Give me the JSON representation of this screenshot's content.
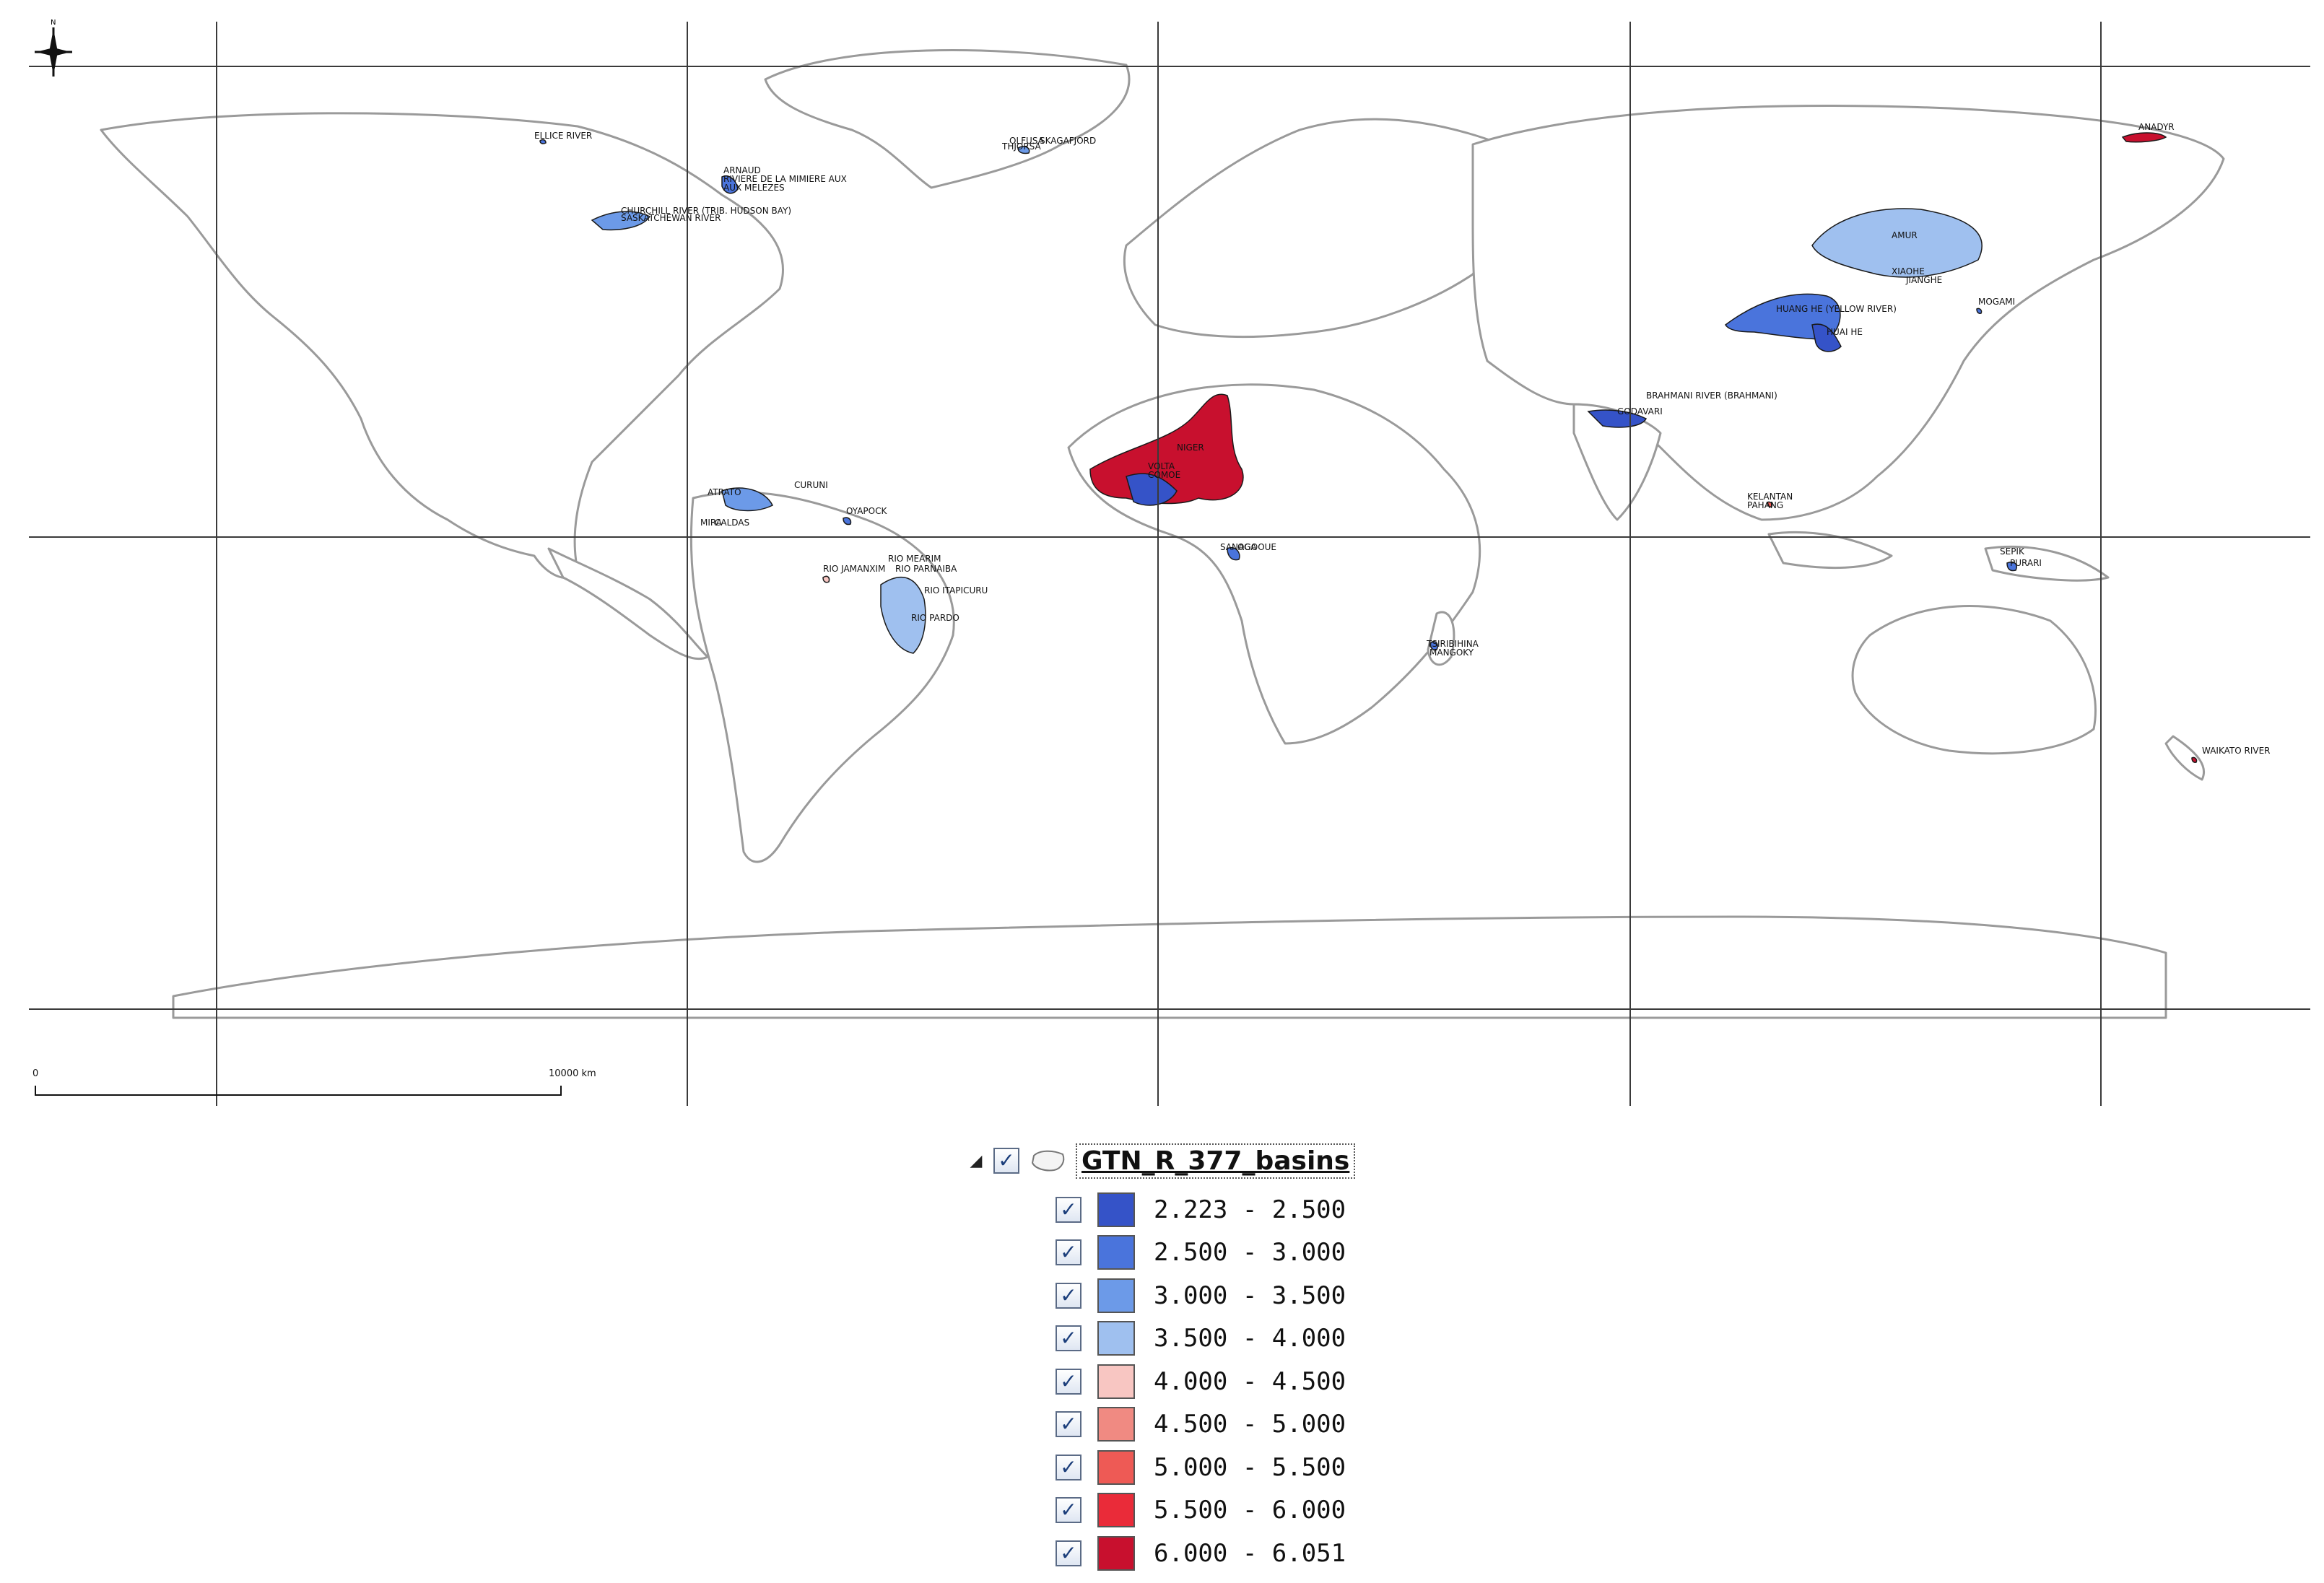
{
  "map": {
    "north_label": "N",
    "scale_zero": "0",
    "scale_distance": "10000 km",
    "basin_labels": [
      "ELLICE RIVER",
      "ARNAUD",
      "RIVIERE DE LA MIMIERE AUX",
      "AUX MELEZES",
      "CHURCHILL RIVER (TRIB. HUDSON BAY)",
      "SASKATCHEWAN RIVER",
      "OLFUSA",
      "THJORSA",
      "SKAGAFJORD",
      "AMUR",
      "XIAOHE",
      "JIANGHE",
      "HUANG HE (YELLOW RIVER)",
      "HUAI HE",
      "MOGAMI",
      "BRAHMANI RIVER (BRAHMANI)",
      "GODAVARI",
      "NIGER",
      "VOLTA",
      "COMOE",
      "SANAGA",
      "OGOOUE",
      "CURUNI",
      "ATRATO",
      "OYAPOCK",
      "MIRA",
      "CALDAS",
      "RIO MEARIM",
      "RIO PARNAIBA",
      "RIO ITAPICURU",
      "RIO JAMANXIM",
      "RIO PARDO",
      "TSIRIBIHINA",
      "MANGOKY",
      "KELANTAN",
      "PAHANG",
      "SEPIK",
      "PURARI",
      "WAIKATO RIVER",
      "ANADYR"
    ]
  },
  "legend": {
    "expand_glyph": "◢",
    "check_glyph": "✓",
    "layer_name": "GTN_R_377_basins",
    "classes": [
      {
        "label": "2.223 - 2.500",
        "color": "#3553c8"
      },
      {
        "label": "2.500 - 3.000",
        "color": "#4a74dc"
      },
      {
        "label": "3.000 - 3.500",
        "color": "#6c9ae8"
      },
      {
        "label": "3.500 - 4.000",
        "color": "#9fc0ef"
      },
      {
        "label": "4.000 - 4.500",
        "color": "#f8c6c2"
      },
      {
        "label": "4.500 - 5.000",
        "color": "#f08a82"
      },
      {
        "label": "5.000 - 5.500",
        "color": "#ee5a55"
      },
      {
        "label": "5.500 - 6.000",
        "color": "#ea2b39"
      },
      {
        "label": "6.000 - 6.051",
        "color": "#c8102e"
      }
    ]
  }
}
